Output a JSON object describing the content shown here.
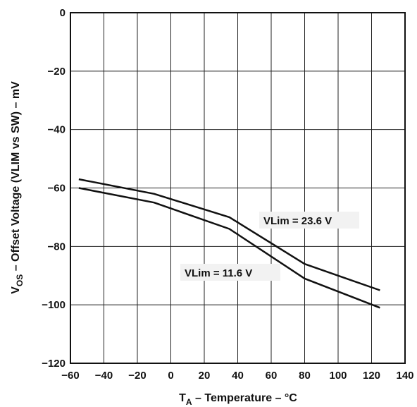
{
  "chart_data": {
    "type": "line",
    "xlabel": {
      "main": "T",
      "sub": "A",
      "rest": " – Temperature – °C"
    },
    "ylabel": {
      "main": "V",
      "sub": "OS",
      "rest": " – Offset Voltage (VLIM vs SW) – mV"
    },
    "xlim": [
      -60,
      140
    ],
    "ylim": [
      -120,
      0
    ],
    "xticks": [
      "−60",
      "−40",
      "−20",
      "0",
      "20",
      "40",
      "60",
      "80",
      "100",
      "120",
      "140"
    ],
    "xtick_values": [
      -60,
      -40,
      -20,
      0,
      20,
      40,
      60,
      80,
      100,
      120,
      140
    ],
    "yticks": [
      "0",
      "−20",
      "−40",
      "−60",
      "−80",
      "−100",
      "−120"
    ],
    "ytick_values": [
      0,
      -20,
      -40,
      -60,
      -80,
      -100,
      -120
    ],
    "grid": true,
    "series": [
      {
        "name": "VLim = 23.6  V",
        "x": [
          -55,
          -10,
          35,
          80,
          125
        ],
        "y": [
          -57,
          -62,
          -70,
          -86,
          -95
        ]
      },
      {
        "name": "VLim = 11.6  V",
        "x": [
          -55,
          -10,
          35,
          80,
          125
        ],
        "y": [
          -60,
          -65,
          -74,
          -91,
          -101
        ]
      }
    ],
    "annotations": [
      {
        "text": "VLim = 23.6  V",
        "series": 0
      },
      {
        "text": "VLim = 11.6  V",
        "series": 1
      }
    ]
  }
}
